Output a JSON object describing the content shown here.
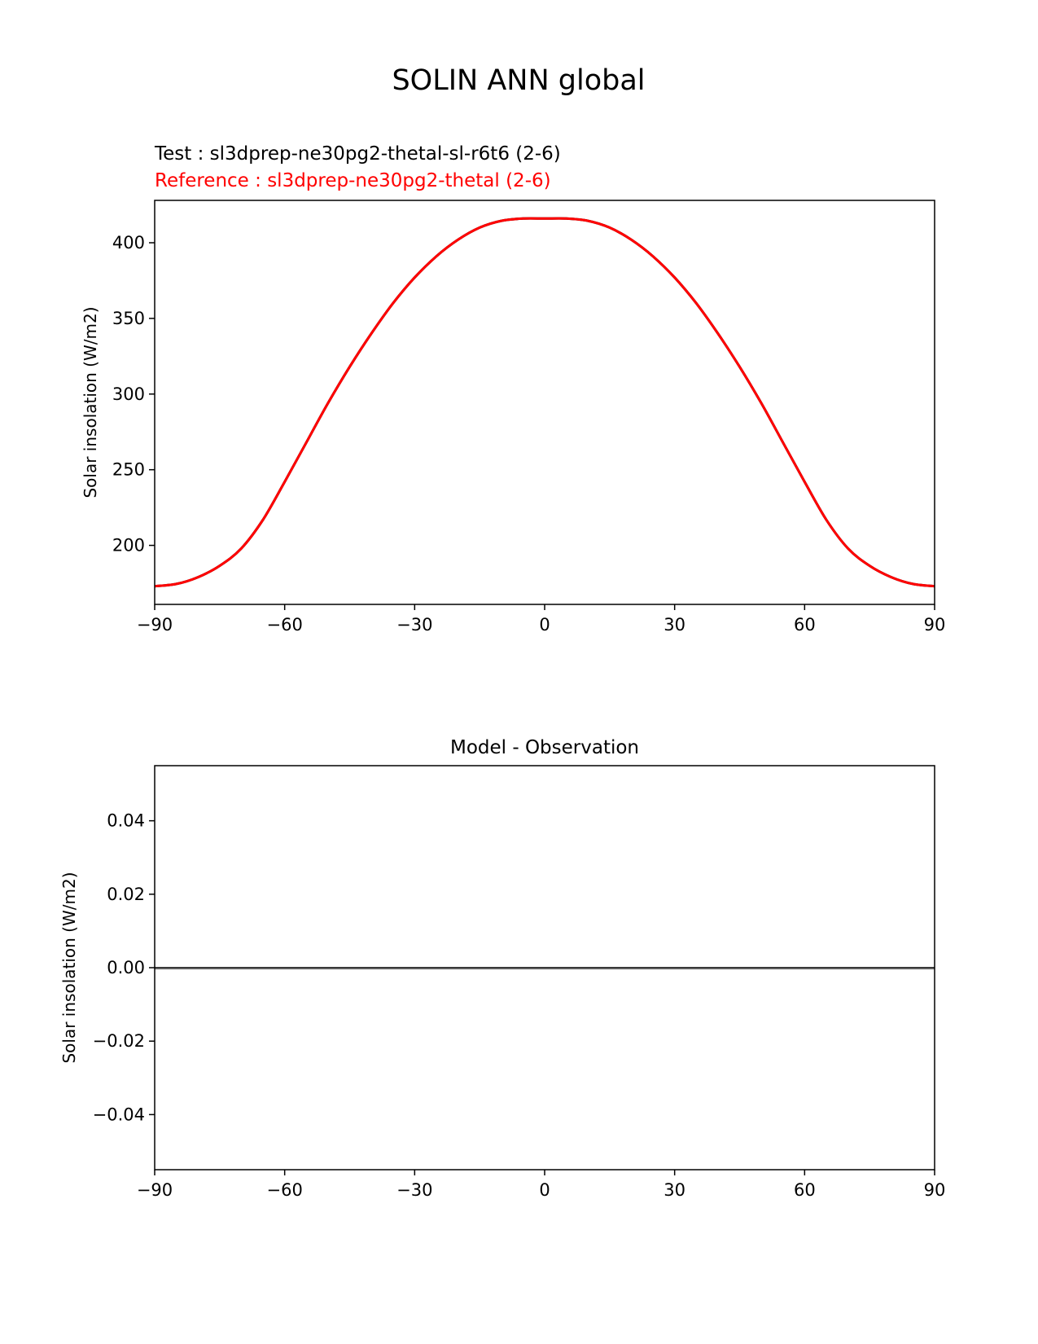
{
  "suptitle": "SOLIN ANN global",
  "colors": {
    "test": "#000000",
    "reference": "#ff0000",
    "axis": "#000000",
    "diff_line": "#000000",
    "zero_line": "#888888"
  },
  "chart_data": [
    {
      "type": "line",
      "title": "",
      "test_label": "Test : sl3dprep-ne30pg2-thetal-sl-r6t6 (2-6)",
      "reference_label": "Reference : sl3dprep-ne30pg2-thetal (2-6)",
      "xlabel": "",
      "ylabel": "Solar insolation (W/m2)",
      "xlim": [
        -90,
        90
      ],
      "ylim": [
        161,
        428
      ],
      "xticks": [
        -90,
        -60,
        -30,
        0,
        30,
        60,
        90
      ],
      "xtick_labels": [
        "−90",
        "−60",
        "−30",
        "0",
        "30",
        "60",
        "90"
      ],
      "yticks": [
        200,
        250,
        300,
        350,
        400
      ],
      "ytick_labels": [
        "200",
        "250",
        "300",
        "350",
        "400"
      ],
      "x": [
        -90,
        -85,
        -80,
        -75,
        -70,
        -65,
        -60,
        -55,
        -50,
        -45,
        -40,
        -35,
        -30,
        -25,
        -20,
        -15,
        -10,
        -5,
        0,
        5,
        10,
        15,
        20,
        25,
        30,
        35,
        40,
        45,
        50,
        55,
        60,
        65,
        70,
        75,
        80,
        85,
        90
      ],
      "series": [
        {
          "name": "test",
          "values": [
            173,
            174.5,
            179,
            186.5,
            198,
            217,
            242,
            268,
            294,
            318,
            340,
            360,
            377,
            391,
            402,
            410,
            414.5,
            416,
            416,
            416,
            414.5,
            410,
            402,
            391,
            377,
            360,
            340,
            318,
            294,
            268,
            242,
            217,
            198,
            186.5,
            179,
            174.5,
            173
          ]
        },
        {
          "name": "reference",
          "values": [
            173,
            174.5,
            179,
            186.5,
            198,
            217,
            242,
            268,
            294,
            318,
            340,
            360,
            377,
            391,
            402,
            410,
            414.5,
            416,
            416,
            416,
            414.5,
            410,
            402,
            391,
            377,
            360,
            340,
            318,
            294,
            268,
            242,
            217,
            198,
            186.5,
            179,
            174.5,
            173
          ]
        }
      ]
    },
    {
      "type": "line",
      "title": "Model - Observation",
      "xlabel": "",
      "ylabel": "Solar insolation (W/m2)",
      "xlim": [
        -90,
        90
      ],
      "ylim": [
        -0.055,
        0.055
      ],
      "xticks": [
        -90,
        -60,
        -30,
        0,
        30,
        60,
        90
      ],
      "xtick_labels": [
        "−90",
        "−60",
        "−30",
        "0",
        "30",
        "60",
        "90"
      ],
      "yticks": [
        -0.04,
        -0.02,
        0.0,
        0.02,
        0.04
      ],
      "ytick_labels": [
        "−0.04",
        "−0.02",
        "0.00",
        "0.02",
        "0.04"
      ],
      "x": [
        -90,
        -60,
        -30,
        0,
        30,
        60,
        90
      ],
      "series": [
        {
          "name": "difference",
          "values": [
            0,
            0,
            0,
            0,
            0,
            0,
            0
          ]
        }
      ],
      "zero_line": 0
    }
  ]
}
